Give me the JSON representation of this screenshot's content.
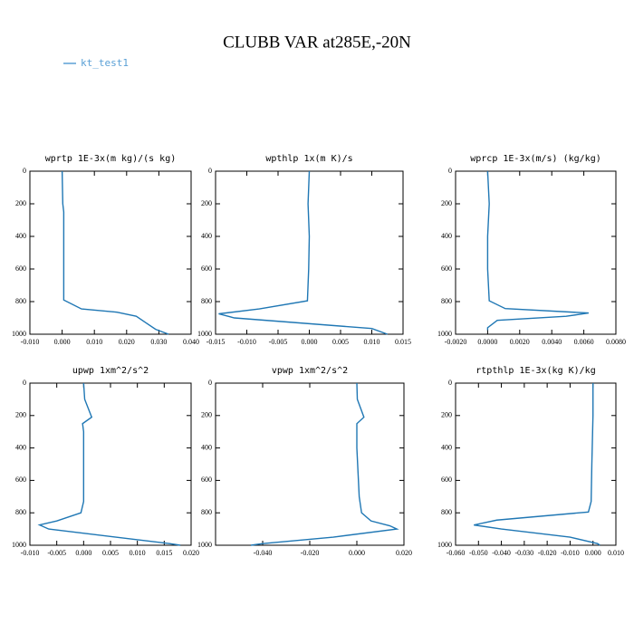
{
  "title": "CLUBB VAR at285E,-20N",
  "legend": {
    "name": "kt_test1",
    "color": "#5aa0d6"
  },
  "chart_data": [
    {
      "type": "line",
      "title": "wprtp  1E-3x(m kg)/(s kg)",
      "xlim": [
        -0.01,
        0.04
      ],
      "xticks": [
        {
          "value": -0.01,
          "label": "-0.010"
        },
        {
          "value": 0,
          "label": "0.000"
        },
        {
          "value": 0.01,
          "label": "0.010"
        },
        {
          "value": 0.02,
          "label": "0.020"
        },
        {
          "value": 0.03,
          "label": "0.030"
        },
        {
          "value": 0.04,
          "label": "0.040"
        }
      ],
      "ylim": [
        1000,
        0
      ],
      "yticks": [
        0,
        200,
        400,
        600,
        800,
        1000
      ],
      "series": [
        {
          "color": "#1f77b4",
          "x": [
            0,
            0.0002,
            0.0005,
            0.0005,
            0.0005,
            0.006,
            0.017,
            0.023,
            0.026,
            0.029,
            0.033
          ],
          "y": [
            0,
            200,
            250,
            500,
            790,
            845,
            865,
            890,
            930,
            970,
            1000
          ]
        }
      ]
    },
    {
      "type": "line",
      "title": "wpthlp  1x(m K)/s",
      "xlim": [
        -0.015,
        0.015
      ],
      "xticks": [
        {
          "value": -0.015,
          "label": "-0.015"
        },
        {
          "value": -0.01,
          "label": "-0.010"
        },
        {
          "value": -0.005,
          "label": "-0.005"
        },
        {
          "value": 0,
          "label": "0.000"
        },
        {
          "value": 0.005,
          "label": "0.005"
        },
        {
          "value": 0.01,
          "label": "0.010"
        },
        {
          "value": 0.015,
          "label": "0.015"
        }
      ],
      "ylim": [
        1000,
        0
      ],
      "yticks": [
        0,
        200,
        400,
        600,
        800,
        1000
      ],
      "series": [
        {
          "color": "#1f77b4",
          "x": [
            0,
            -0.0002,
            0,
            -0.0001,
            -0.0003,
            -0.008,
            -0.0145,
            -0.012,
            0.01,
            0.0125
          ],
          "y": [
            0,
            200,
            400,
            600,
            795,
            845,
            875,
            900,
            965,
            1000
          ]
        }
      ]
    },
    {
      "type": "line",
      "title": "wprcp  1E-3x(m/s) (kg/kg)",
      "xlim": [
        -0.002,
        0.008
      ],
      "xticks": [
        {
          "value": -0.002,
          "label": "-0.0020"
        },
        {
          "value": 0,
          "label": "0.0000"
        },
        {
          "value": 0.002,
          "label": "0.0020"
        },
        {
          "value": 0.004,
          "label": "0.0040"
        },
        {
          "value": 0.006,
          "label": "0.0060"
        },
        {
          "value": 0.008,
          "label": "0.0080"
        }
      ],
      "ylim": [
        1000,
        0
      ],
      "yticks": [
        0,
        200,
        400,
        600,
        800,
        1000
      ],
      "series": [
        {
          "color": "#1f77b4",
          "x": [
            0,
            0.0001,
            0,
            0,
            0.0001,
            0.0011,
            0.0063,
            0.0049,
            0.0006,
            0,
            0
          ],
          "y": [
            0,
            200,
            400,
            600,
            795,
            843,
            870,
            890,
            915,
            960,
            975
          ]
        }
      ]
    },
    {
      "type": "line",
      "title": "upwp  1xm^2/s^2",
      "xlim": [
        -0.01,
        0.02
      ],
      "xticks": [
        {
          "value": -0.01,
          "label": "-0.010"
        },
        {
          "value": -0.005,
          "label": "-0.005"
        },
        {
          "value": 0,
          "label": "0.000"
        },
        {
          "value": 0.005,
          "label": "0.005"
        },
        {
          "value": 0.01,
          "label": "0.010"
        },
        {
          "value": 0.015,
          "label": "0.015"
        },
        {
          "value": 0.02,
          "label": "0.020"
        }
      ],
      "ylim": [
        1000,
        0
      ],
      "yticks": [
        0,
        200,
        400,
        600,
        800,
        1000
      ],
      "series": [
        {
          "color": "#1f77b4",
          "x": [
            0,
            0.0002,
            0.0015,
            -0.0002,
            0,
            0,
            0,
            -0.0005,
            -0.005,
            -0.0082,
            -0.0065,
            0.006,
            0.016,
            0.018
          ],
          "y": [
            0,
            100,
            210,
            250,
            300,
            400,
            730,
            800,
            850,
            875,
            900,
            950,
            990,
            1000
          ]
        }
      ]
    },
    {
      "type": "line",
      "title": "vpwp  1xm^2/s^2",
      "xlim": [
        -0.06,
        0.02
      ],
      "xticks": [
        {
          "value": -0.04,
          "label": "-0.040"
        },
        {
          "value": -0.02,
          "label": "-0.020"
        },
        {
          "value": 0,
          "label": "0.000"
        },
        {
          "value": 0.02,
          "label": "0.020"
        }
      ],
      "ylim": [
        1000,
        0
      ],
      "yticks": [
        0,
        200,
        400,
        600,
        800,
        1000
      ],
      "series": [
        {
          "color": "#1f77b4",
          "x": [
            0,
            0.0002,
            0.003,
            0,
            0,
            0.001,
            0.002,
            0.006,
            0.014,
            0.017,
            -0.01,
            -0.04,
            -0.045
          ],
          "y": [
            0,
            100,
            210,
            250,
            400,
            700,
            800,
            850,
            880,
            900,
            950,
            990,
            1000
          ]
        }
      ]
    },
    {
      "type": "line",
      "title": "rtpthlp  1E-3x(kg K)/kg",
      "xlim": [
        -0.06,
        0.01
      ],
      "xticks": [
        {
          "value": -0.06,
          "label": "-0.060"
        },
        {
          "value": -0.05,
          "label": "-0.050"
        },
        {
          "value": -0.04,
          "label": "-0.040"
        },
        {
          "value": -0.03,
          "label": "-0.030"
        },
        {
          "value": -0.02,
          "label": "-0.020"
        },
        {
          "value": -0.01,
          "label": "-0.010"
        },
        {
          "value": 0,
          "label": "0.000"
        },
        {
          "value": 0.01,
          "label": "0.010"
        }
      ],
      "ylim": [
        1000,
        0
      ],
      "yticks": [
        0,
        200,
        400,
        600,
        800,
        1000
      ],
      "series": [
        {
          "color": "#1f77b4",
          "x": [
            0,
            0,
            -0.0005,
            -0.0008,
            -0.002,
            -0.042,
            -0.052,
            -0.04,
            -0.01,
            0.002,
            0.003
          ],
          "y": [
            0,
            200,
            500,
            730,
            795,
            845,
            875,
            900,
            950,
            990,
            1000
          ]
        }
      ]
    }
  ]
}
